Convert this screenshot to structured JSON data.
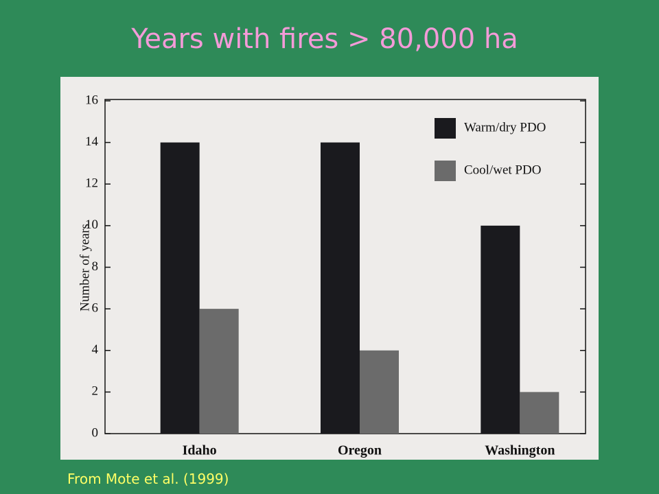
{
  "chart_data": {
    "type": "bar",
    "title": "Years with fires > 80,000 ha",
    "source": "From Mote et al. (1999)",
    "y_label": "Number of years",
    "categories": [
      "Idaho",
      "Oregon",
      "Washington"
    ],
    "series": [
      {
        "name": "Warm/dry PDO",
        "color": "#1a1a1e",
        "values": [
          14,
          14,
          10
        ]
      },
      {
        "name": "Cool/wet PDO",
        "color": "#6b6b6b",
        "values": [
          6,
          4,
          2
        ]
      }
    ],
    "ylim": [
      0,
      16
    ],
    "yticks": [
      0,
      2,
      4,
      6,
      8,
      10,
      12,
      14,
      16
    ],
    "legend": "upper-right",
    "grid": false
  }
}
